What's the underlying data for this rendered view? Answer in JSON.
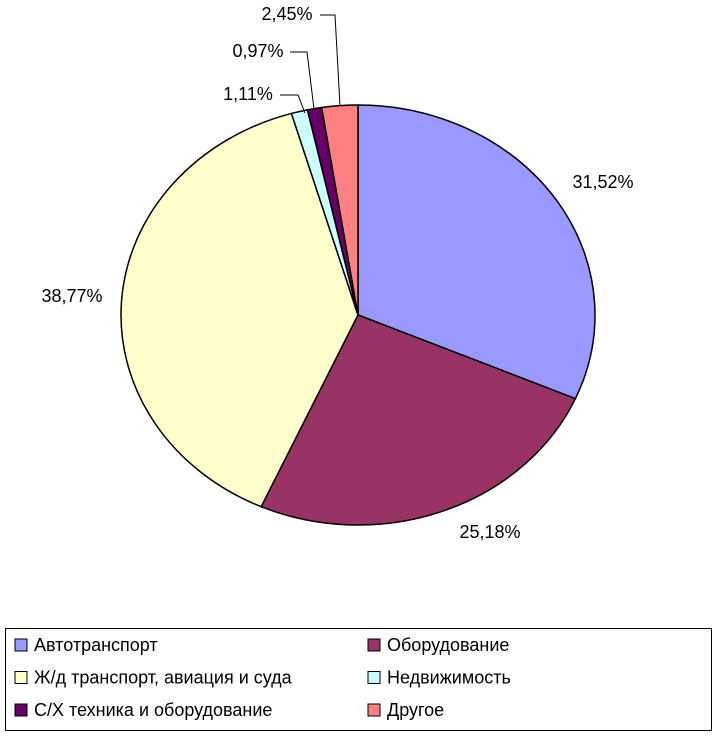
{
  "chart_data": {
    "type": "pie",
    "categories": [
      "Автотранспорт",
      "Оборудование",
      "Ж/д транспорт, авиация и суда",
      "Недвижимость",
      "С/Х техника и оборудование",
      "Другое"
    ],
    "values": [
      31.52,
      25.18,
      38.77,
      1.11,
      0.97,
      2.45
    ],
    "value_labels": [
      "31,52%",
      "25,18%",
      "38,77%",
      "1,11%",
      "0,97%",
      "2,45%"
    ],
    "colors": [
      "#9999ff",
      "#993366",
      "#ffffcc",
      "#ccffff",
      "#660066",
      "#ff8080"
    ],
    "legend": "bottom"
  }
}
